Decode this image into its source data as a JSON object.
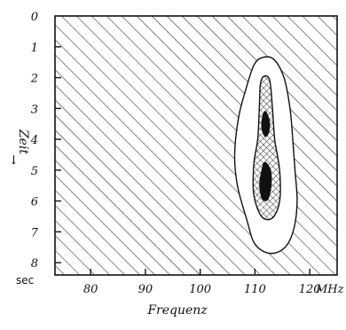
{
  "chart_data": {
    "type": "heatmap",
    "x_axis": {
      "label": "Frequenz",
      "unit": "MHz",
      "ticks": [
        80,
        90,
        100,
        110,
        120
      ],
      "tick_labels": [
        "80",
        "90",
        "100",
        "110",
        "120"
      ],
      "range": [
        73.5,
        125
      ]
    },
    "y_axis": {
      "label": "Zeit",
      "unit": "sec",
      "arrow": "←",
      "inverted": true,
      "ticks": [
        0,
        1,
        2,
        3,
        4,
        5,
        6,
        7,
        8
      ],
      "tick_labels": [
        "0",
        "1",
        "2",
        "3",
        "4",
        "5",
        "6",
        "7",
        "8"
      ],
      "range": [
        0,
        8.4
      ]
    },
    "levels": [
      {
        "name": "background",
        "fill": "diagonal-hatch-fine",
        "region": "full-plot"
      },
      {
        "name": "outer-contour",
        "fill": "white",
        "polygon": [
          [
            111.3,
            1.35
          ],
          [
            113.4,
            1.4
          ],
          [
            115.3,
            2.0
          ],
          [
            116.4,
            3.0
          ],
          [
            116.9,
            4.0
          ],
          [
            117.3,
            5.0
          ],
          [
            117.7,
            6.0
          ],
          [
            117.1,
            6.9
          ],
          [
            115.5,
            7.5
          ],
          [
            112.8,
            7.7
          ],
          [
            110.0,
            7.4
          ],
          [
            108.5,
            6.6
          ],
          [
            106.8,
            5.5
          ],
          [
            106.3,
            4.5
          ],
          [
            107.0,
            3.3
          ],
          [
            108.3,
            2.4
          ],
          [
            109.8,
            1.6
          ]
        ]
      },
      {
        "name": "middle-contour",
        "fill": "cross-hatch",
        "polygon": [
          [
            111.7,
            1.95
          ],
          [
            112.7,
            2.1
          ],
          [
            113.2,
            3.0
          ],
          [
            113.6,
            4.0
          ],
          [
            114.5,
            5.0
          ],
          [
            114.5,
            6.0
          ],
          [
            113.2,
            6.55
          ],
          [
            111.2,
            6.5
          ],
          [
            109.8,
            5.8
          ],
          [
            109.8,
            4.8
          ],
          [
            110.5,
            4.0
          ],
          [
            110.8,
            3.0
          ],
          [
            111.0,
            2.2
          ]
        ]
      },
      {
        "name": "core-upper",
        "fill": "black",
        "polygon": [
          [
            111.9,
            3.1
          ],
          [
            112.6,
            3.4
          ],
          [
            112.5,
            3.75
          ],
          [
            111.9,
            3.9
          ],
          [
            111.3,
            3.65
          ],
          [
            111.4,
            3.3
          ]
        ]
      },
      {
        "name": "core-lower",
        "fill": "black",
        "polygon": [
          [
            111.8,
            4.75
          ],
          [
            112.8,
            5.0
          ],
          [
            112.9,
            5.5
          ],
          [
            112.3,
            5.95
          ],
          [
            111.3,
            5.9
          ],
          [
            110.9,
            5.45
          ],
          [
            111.3,
            5.0
          ]
        ]
      }
    ]
  }
}
